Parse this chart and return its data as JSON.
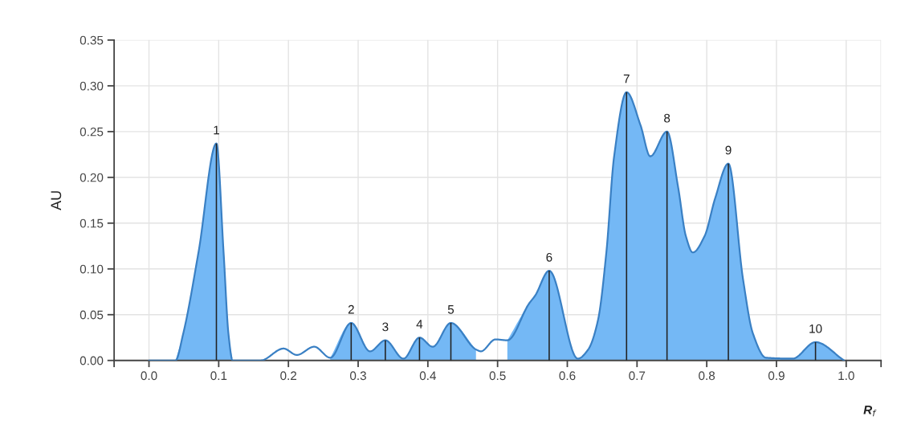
{
  "chart_data": {
    "type": "line",
    "xlabel": "R$_{f}$",
    "ylabel": "AU",
    "xlim": [
      -0.05,
      1.05
    ],
    "xticks": [
      {
        "value": -0.05,
        "label": null
      },
      {
        "value": 0,
        "label": "0.0"
      },
      0.1,
      0.2,
      0.3,
      0.4,
      0.5,
      0.6,
      0.7,
      0.8,
      0.9,
      {
        "value": 1,
        "label": "1.0"
      },
      {
        "value": 1.05,
        "label": null
      }
    ],
    "ylim": [
      0,
      0.35
    ],
    "yticks": [
      {
        "value": 0,
        "label": "0.00"
      },
      {
        "value": 0.05,
        "label": "0.05"
      },
      {
        "value": 0.1,
        "label": "0.10"
      },
      0.15,
      {
        "value": 0.2,
        "label": "0.20"
      },
      0.25,
      {
        "value": 0.3,
        "label": "0.30"
      },
      0.35
    ],
    "grid": true,
    "x": [
      0.0,
      0.038,
      0.049,
      0.071,
      0.0967,
      0.107,
      0.114,
      0.12,
      0.16,
      0.193,
      0.212,
      0.237,
      0.26,
      0.29,
      0.317,
      0.339,
      0.365,
      0.388,
      0.407,
      0.433,
      0.469,
      0.476,
      0.497,
      0.514,
      0.545,
      0.554,
      0.574,
      0.615,
      0.63,
      0.644,
      0.656,
      0.667,
      0.685,
      0.705,
      0.719,
      0.743,
      0.759,
      0.77,
      0.78,
      0.797,
      0.812,
      0.831,
      0.852,
      0.866,
      0.885,
      0.923,
      0.956,
      0.997
    ],
    "series": [
      {
        "type": "area",
        "color": "#74b8f5",
        "values": [
          null,
          0,
          0.029,
          0.118,
          0.237,
          0.118,
          0.029,
          0,
          null,
          null,
          null,
          null,
          0.003,
          0.041,
          0.01,
          0.022,
          0.002,
          0.025,
          0.015,
          0.041,
          0.012,
          null,
          null,
          0.022,
          0.062,
          0.071,
          0.098,
          0.002,
          0.012,
          0.044,
          0.118,
          0.222,
          0.293,
          0.257,
          0.223,
          0.25,
          0.189,
          0.136,
          0.118,
          0.136,
          0.177,
          0.215,
          0.089,
          0.03,
          0.003,
          0.002,
          0.02,
          0
        ]
      },
      {
        "color": "#3a80c4",
        "values": [
          0,
          0,
          0.029,
          0.118,
          0.237,
          0.118,
          0.029,
          0,
          0,
          0.013,
          0.006,
          0.015,
          0.003,
          0.041,
          0.01,
          0.022,
          0.002,
          0.025,
          0.015,
          0.041,
          0.012,
          0.01,
          0.023,
          0.022,
          0.062,
          0.071,
          0.098,
          0.002,
          0.012,
          0.044,
          0.118,
          0.222,
          0.293,
          0.257,
          0.223,
          0.25,
          0.189,
          0.136,
          0.118,
          0.136,
          0.177,
          0.215,
          0.089,
          0.03,
          0.003,
          0.002,
          0.02,
          0
        ]
      },
      {
        "type": "bar",
        "color": "#222222",
        "x": [
          0.0967,
          0.29,
          0.339,
          0.388,
          0.433,
          0.574,
          0.685,
          0.743,
          0.831,
          0.956
        ],
        "values": [
          0.237,
          0.041,
          0.022,
          0.025,
          0.041,
          0.098,
          0.293,
          0.25,
          0.215,
          0.02
        ]
      }
    ],
    "annotations": [
      {
        "text": "1",
        "x": 0.0967,
        "y": 0.237
      },
      {
        "text": "2",
        "x": 0.29,
        "y": 0.041
      },
      {
        "text": "3",
        "x": 0.339,
        "y": 0.022
      },
      {
        "text": "4",
        "x": 0.388,
        "y": 0.025
      },
      {
        "text": "5",
        "x": 0.433,
        "y": 0.041
      },
      {
        "text": "6",
        "x": 0.574,
        "y": 0.098
      },
      {
        "text": "7",
        "x": 0.685,
        "y": 0.293
      },
      {
        "text": "8",
        "x": 0.743,
        "y": 0.25
      },
      {
        "text": "9",
        "x": 0.831,
        "y": 0.215
      },
      {
        "text": "10",
        "x": 0.956,
        "y": 0.02
      }
    ]
  }
}
